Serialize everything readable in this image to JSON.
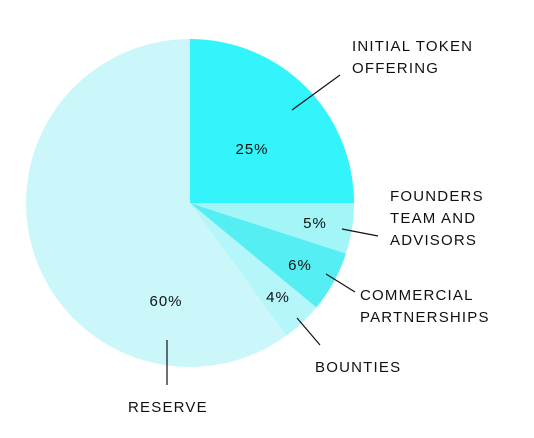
{
  "chart_data": {
    "type": "pie",
    "categories": [
      "INITIAL TOKEN OFFERING",
      "FOUNDERS TEAM AND ADVISORS",
      "COMMERCIAL PARTNERSHIPS",
      "BOUNTIES",
      "RESERVE"
    ],
    "values": [
      25,
      5,
      6,
      4,
      60
    ],
    "value_labels": [
      "25%",
      "5%",
      "6%",
      "4%",
      "60%"
    ],
    "colors": [
      "#33f3fb",
      "#a3f5f8",
      "#55eef3",
      "#b4f6f9",
      "#cbf7fa"
    ]
  }
}
